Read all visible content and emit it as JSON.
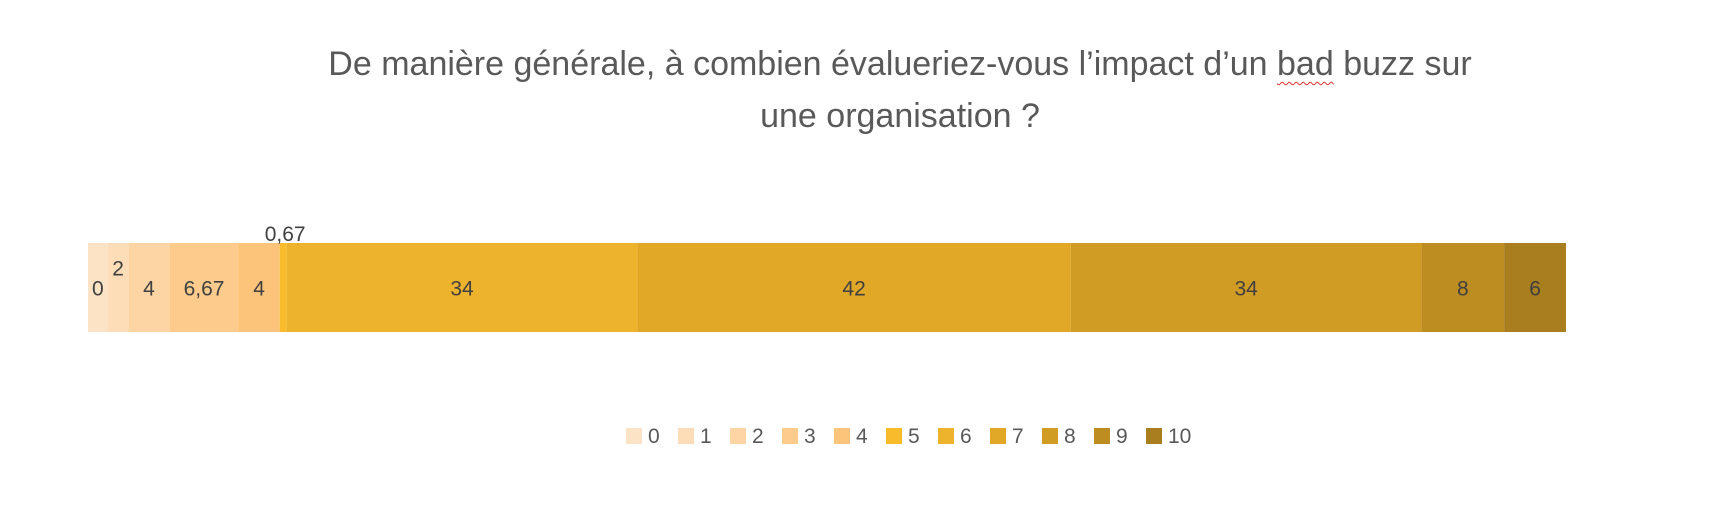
{
  "title": {
    "part1": "De manière générale, à combien évalueriez-vous l’impact d’un ",
    "underlined": "bad",
    "part2": " buzz sur",
    "line2": "une organisation ?"
  },
  "chart_data": {
    "type": "bar",
    "stacked": true,
    "orientation": "horizontal",
    "title": "De manière générale, à combien évalueriez-vous l’impact d’un bad buzz sur une organisation ?",
    "legend_position": "bottom",
    "grid": false,
    "series": [
      {
        "name": "0",
        "value": 0,
        "label": "0",
        "color": "#fde3c6"
      },
      {
        "name": "1",
        "value": 2,
        "label": "2",
        "color": "#fddcb8"
      },
      {
        "name": "2",
        "value": 4,
        "label": "4",
        "color": "#fdd4a4"
      },
      {
        "name": "3",
        "value": 6.67,
        "label": "6,67",
        "color": "#fdcc8c"
      },
      {
        "name": "4",
        "value": 4,
        "label": "4",
        "color": "#fcc47a"
      },
      {
        "name": "5",
        "value": 0.67,
        "label": "0,67",
        "color": "#f8bb2c"
      },
      {
        "name": "6",
        "value": 34,
        "label": "34",
        "color": "#eeb32d"
      },
      {
        "name": "7",
        "value": 42,
        "label": "42",
        "color": "#e1a828"
      },
      {
        "name": "8",
        "value": 34,
        "label": "34",
        "color": "#d19c24"
      },
      {
        "name": "9",
        "value": 8,
        "label": "8",
        "color": "#bd8d22"
      },
      {
        "name": "10",
        "value": 6,
        "label": "6",
        "color": "#a97e1e"
      }
    ]
  }
}
